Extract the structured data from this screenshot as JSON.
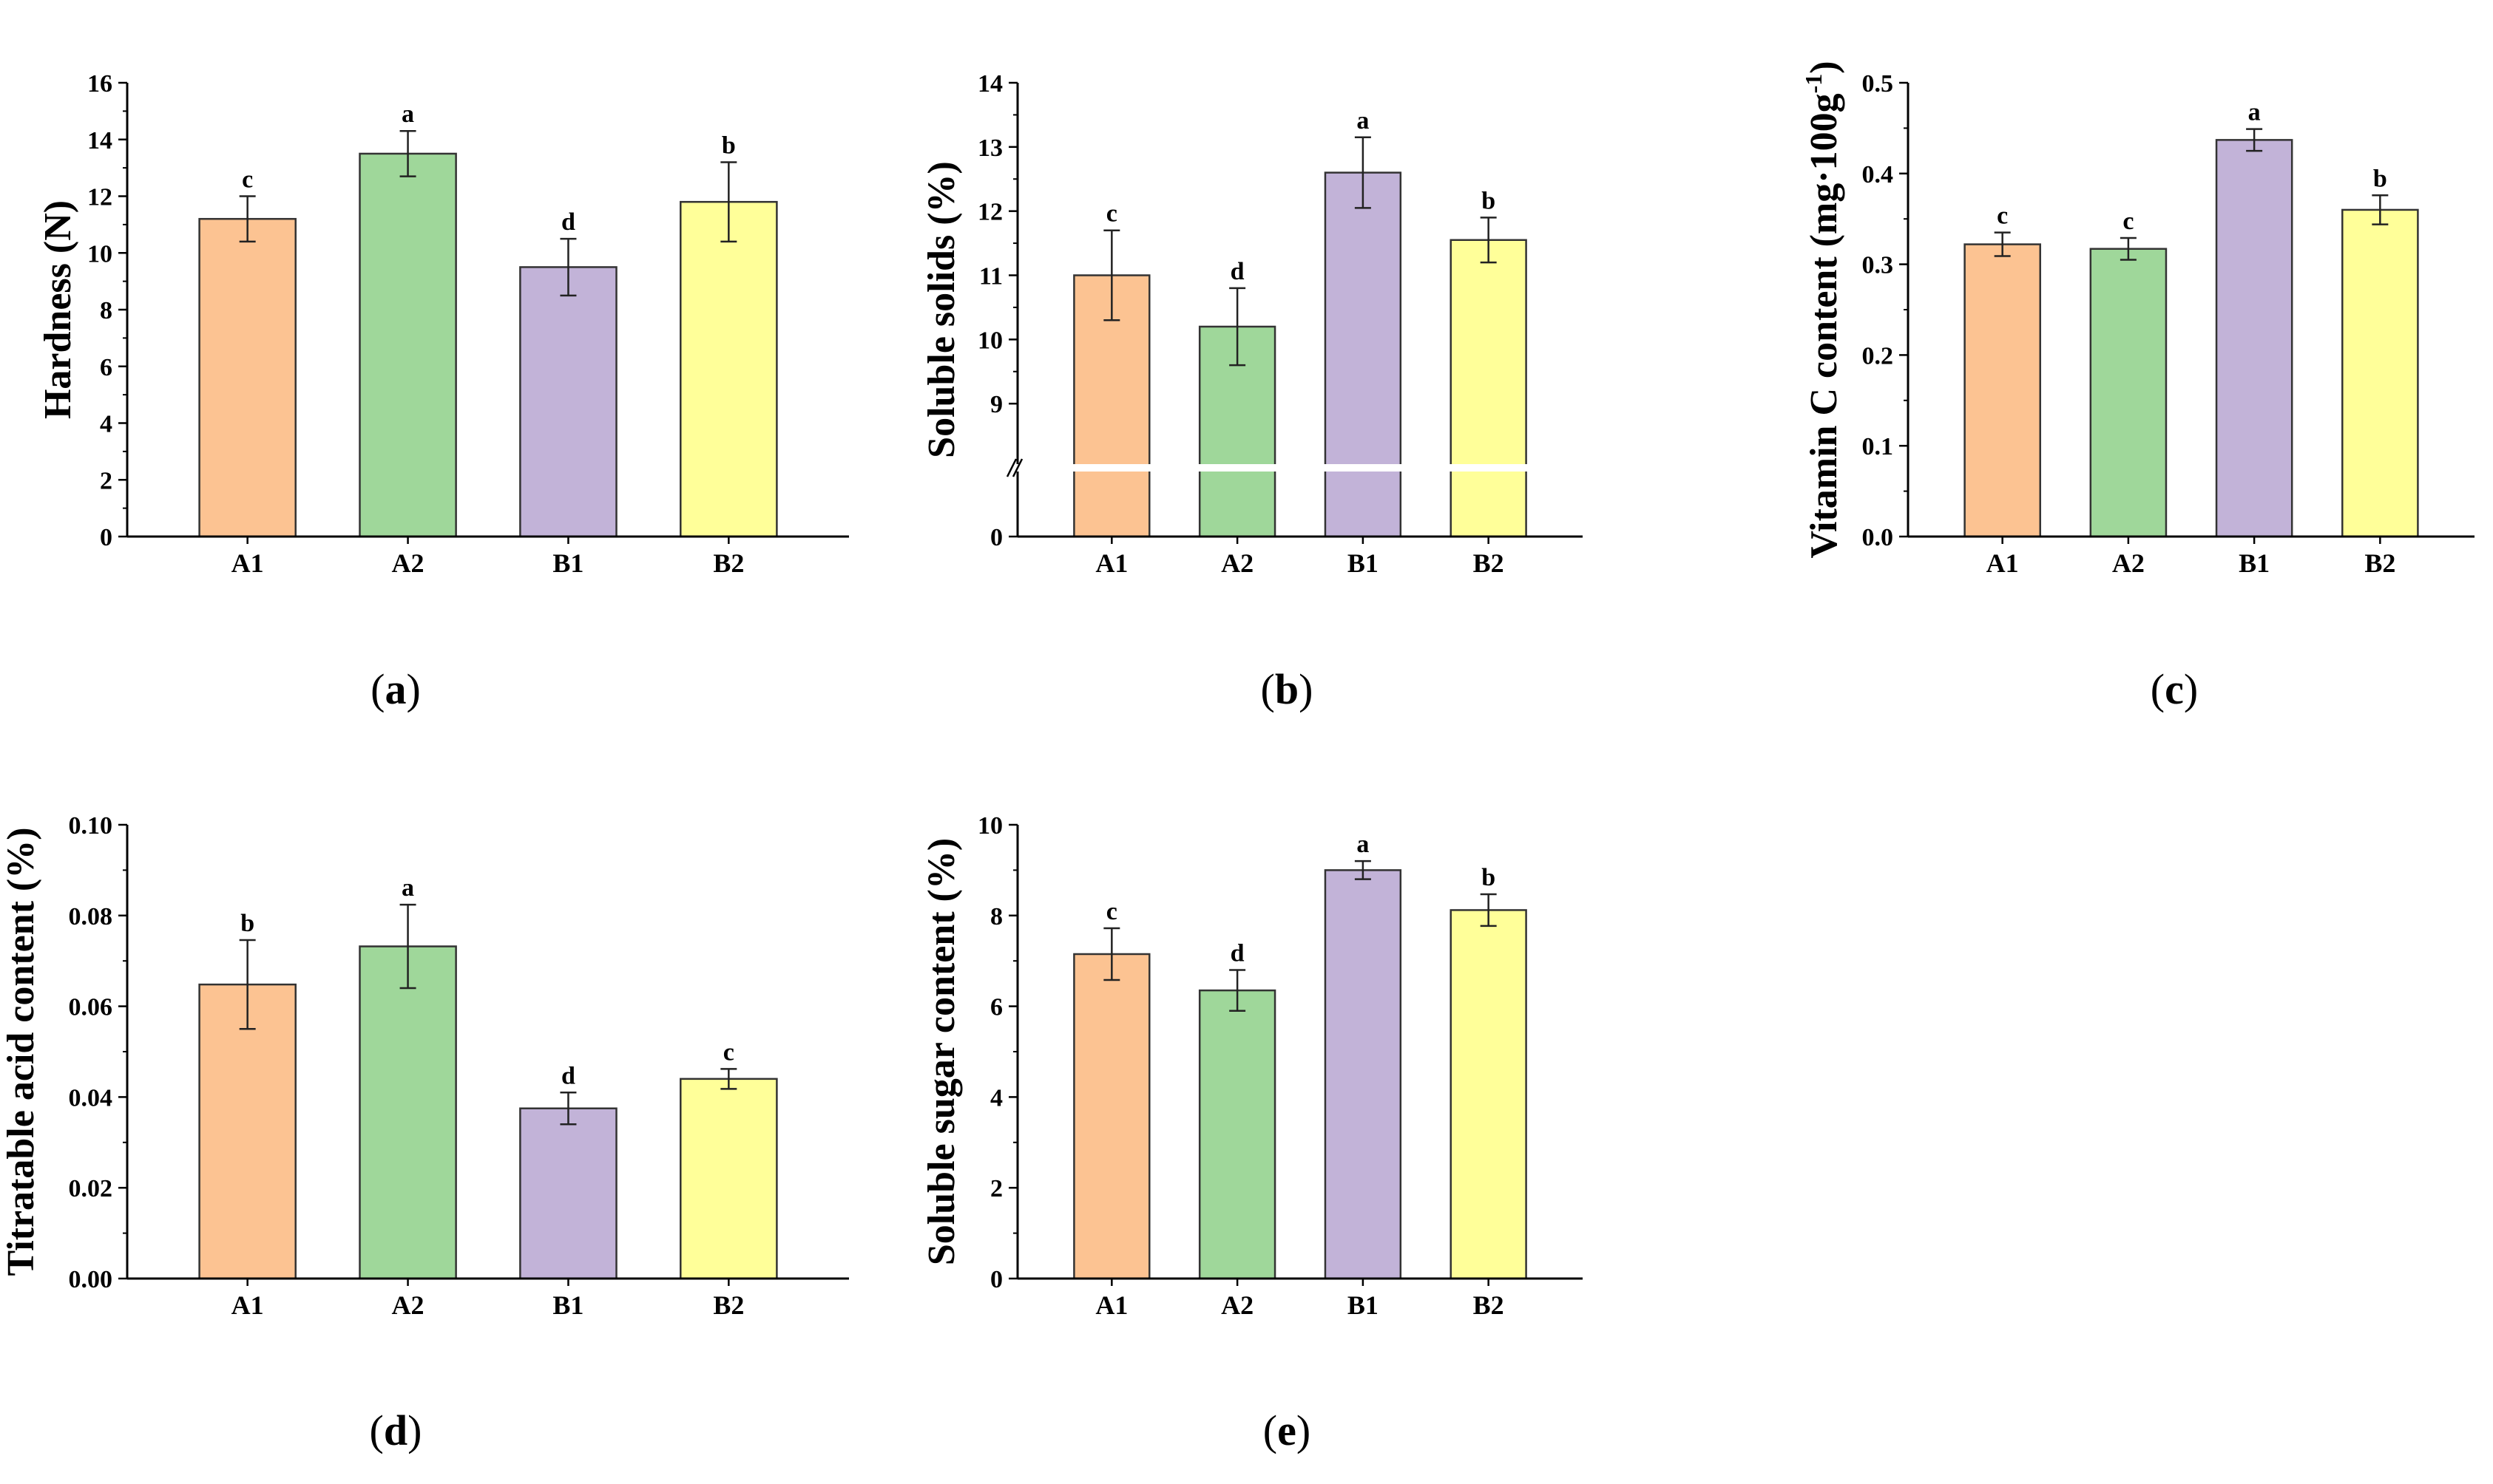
{
  "colors": {
    "A1": "#fcc392",
    "A2": "#9fd79a",
    "B1": "#c2b3d8",
    "B2": "#ffff99"
  },
  "chart_data": [
    {
      "type": "bar",
      "panel": "a",
      "categories": [
        "A1",
        "A2",
        "B1",
        "B2"
      ],
      "values": [
        11.2,
        13.5,
        9.5,
        11.8
      ],
      "errors": [
        0.8,
        0.8,
        1.0,
        1.4
      ],
      "letters": [
        "c",
        "a",
        "d",
        "b"
      ],
      "ylabel": "Hardness  (N)",
      "ylim": [
        0,
        16
      ],
      "yticks": [
        0,
        2,
        4,
        6,
        8,
        10,
        12,
        14,
        16
      ],
      "ytick_labels": [
        "0",
        "2",
        "4",
        "6",
        "8",
        "10",
        "12",
        "14",
        "16"
      ],
      "panel_label": {
        "open": "(",
        "letter": "a",
        "close": ")"
      }
    },
    {
      "type": "bar",
      "panel": "b",
      "categories": [
        "A1",
        "A2",
        "B1",
        "B2"
      ],
      "values": [
        11.0,
        10.2,
        12.6,
        11.55
      ],
      "errors": [
        0.7,
        0.6,
        0.55,
        0.35
      ],
      "letters": [
        "c",
        "d",
        "a",
        "b"
      ],
      "ylabel": "Soluble solids  (%)",
      "ylim": [
        8,
        14
      ],
      "axis_break": true,
      "yticks": [
        0,
        9,
        10,
        11,
        12,
        13,
        14
      ],
      "ytick_labels": [
        "0",
        "9",
        "10",
        "11",
        "12",
        "13",
        "14"
      ],
      "panel_label": {
        "open": "(",
        "letter": "b",
        "close": ")"
      }
    },
    {
      "type": "bar",
      "panel": "c",
      "categories": [
        "A1",
        "A2",
        "B1",
        "B2"
      ],
      "values": [
        0.322,
        0.317,
        0.437,
        0.36
      ],
      "errors": [
        0.013,
        0.012,
        0.012,
        0.016
      ],
      "letters": [
        "c",
        "c",
        "a",
        "b"
      ],
      "ylabel": "Vitamin C content (mg·100g",
      "ylabel_sup": "-1",
      "ylabel_end": ")",
      "ylim": [
        0,
        0.5
      ],
      "yticks": [
        0,
        0.1,
        0.2,
        0.3,
        0.4,
        0.5
      ],
      "ytick_labels": [
        "0.0",
        "0.1",
        "0.2",
        "0.3",
        "0.4",
        "0.5"
      ],
      "panel_label": {
        "open": "(",
        "letter": "c",
        "close": ")"
      }
    },
    {
      "type": "bar",
      "panel": "d",
      "categories": [
        "A1",
        "A2",
        "B1",
        "B2"
      ],
      "values": [
        0.0648,
        0.0732,
        0.0375,
        0.044
      ],
      "errors": [
        0.0098,
        0.0092,
        0.0035,
        0.0022
      ],
      "letters": [
        "b",
        "a",
        "d",
        "c"
      ],
      "ylabel": "Titratable acid content  (%)",
      "ylim": [
        0,
        0.1
      ],
      "yticks": [
        0,
        0.02,
        0.04,
        0.06,
        0.08,
        0.1
      ],
      "ytick_labels": [
        "0.00",
        "0.02",
        "0.04",
        "0.06",
        "0.08",
        "0.10"
      ],
      "panel_label": {
        "open": "(",
        "letter": "d",
        "close": ")"
      }
    },
    {
      "type": "bar",
      "panel": "e",
      "categories": [
        "A1",
        "A2",
        "B1",
        "B2"
      ],
      "values": [
        7.15,
        6.35,
        9.0,
        8.12
      ],
      "errors": [
        0.57,
        0.45,
        0.2,
        0.35
      ],
      "letters": [
        "c",
        "d",
        "a",
        "b"
      ],
      "ylabel": "Soluble sugar content  (%)",
      "ylim": [
        0,
        10
      ],
      "yticks": [
        0,
        2,
        4,
        6,
        8,
        10
      ],
      "ytick_labels": [
        "0",
        "2",
        "4",
        "6",
        "8",
        "10"
      ],
      "panel_label": {
        "open": "(",
        "letter": "e",
        "close": ")"
      }
    }
  ]
}
